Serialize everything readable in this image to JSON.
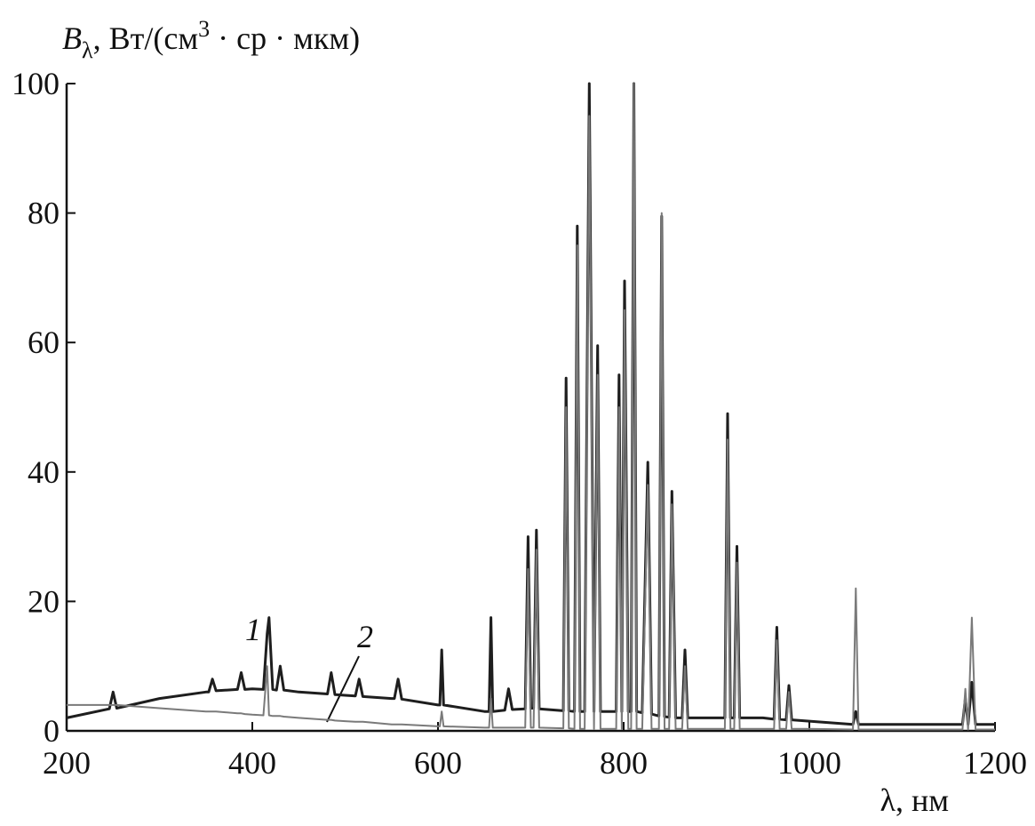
{
  "chart_data": {
    "type": "line",
    "y_label": {
      "symbol": "B",
      "subscript": "λ",
      "text": ", Вт/(см",
      "superscript": "3",
      "rest": " · ср · мкм)"
    },
    "x_label": "λ, нм",
    "annotations": [
      "1",
      "2"
    ],
    "x": [
      200,
      246,
      250,
      254,
      300,
      350,
      353,
      357,
      361,
      384,
      388,
      392,
      400,
      412,
      416,
      418,
      422,
      426,
      430,
      434,
      450,
      481,
      485,
      489,
      500,
      511,
      515,
      519,
      550,
      553,
      557,
      561,
      600,
      602,
      604,
      606,
      650,
      655,
      657,
      659,
      672,
      676,
      680,
      694,
      697,
      700,
      703,
      706,
      709,
      735,
      738,
      741,
      747,
      750,
      753,
      758,
      763,
      768,
      772,
      775,
      785,
      792,
      795,
      798,
      801,
      805,
      808,
      811,
      814,
      820,
      826,
      830,
      838,
      841,
      844,
      849,
      852,
      856,
      863,
      866,
      869,
      900,
      909,
      912,
      915,
      919,
      922,
      925,
      950,
      962,
      965,
      968,
      975,
      978,
      981,
      1000,
      1047,
      1050,
      1053,
      1100,
      1150,
      1165,
      1168,
      1171,
      1175,
      1179,
      1200
    ],
    "series": [
      {
        "name": "1",
        "color": "#1e1e1e",
        "values": [
          2,
          3.4,
          6,
          3.5,
          5,
          6,
          6,
          8,
          6.2,
          6.4,
          9,
          6.4,
          6.5,
          6.4,
          15,
          17.5,
          6.4,
          6.3,
          10,
          6.3,
          6,
          5.7,
          9,
          5.6,
          5.5,
          5.4,
          8,
          5.3,
          5,
          5,
          8,
          4.9,
          4,
          4,
          12.5,
          4,
          3,
          3,
          17.5,
          3,
          3.2,
          6.5,
          3.3,
          3.4,
          30,
          3.5,
          3.5,
          31,
          3.4,
          3.1,
          54.5,
          3.1,
          3,
          78,
          3,
          3,
          100,
          3,
          59.5,
          3,
          3,
          3,
          55,
          3,
          69.5,
          3,
          3,
          100,
          3,
          2.8,
          41.5,
          2.6,
          2.3,
          79.5,
          2.2,
          2.1,
          37,
          2,
          2,
          12.5,
          2,
          2,
          2,
          49,
          2,
          2,
          28.5,
          2,
          2,
          1.8,
          16,
          1.8,
          1.7,
          7,
          1.7,
          1.5,
          1,
          3,
          1,
          1,
          1,
          1,
          5,
          1,
          7.5,
          1,
          1
        ]
      },
      {
        "name": "2",
        "color": "#7a7a7a",
        "values": [
          4,
          4,
          4,
          4,
          3.5,
          3,
          3,
          3,
          3,
          2.7,
          2.7,
          2.6,
          2.5,
          2.4,
          10,
          2.4,
          2.3,
          2.3,
          2.3,
          2.2,
          2,
          1.7,
          1.7,
          1.6,
          1.5,
          1.4,
          1.4,
          1.4,
          1,
          1,
          1,
          1,
          0.7,
          0.7,
          3,
          0.7,
          0.5,
          0.5,
          5,
          0.5,
          0.5,
          0.5,
          0.5,
          0.5,
          25,
          0.5,
          0.5,
          28,
          0.5,
          0.4,
          50,
          0.4,
          0.3,
          75,
          0.3,
          0.3,
          95,
          0.3,
          55,
          0.3,
          0.3,
          0.3,
          50,
          0.3,
          65,
          0.3,
          0.3,
          100,
          0.3,
          0.3,
          38,
          0.3,
          0.3,
          80,
          0.3,
          0.3,
          35,
          0.3,
          0.3,
          10,
          0.3,
          0.3,
          0.3,
          45,
          0.3,
          0.3,
          26,
          0.3,
          0.3,
          0.3,
          14,
          0.3,
          0.3,
          6,
          0.3,
          0.3,
          0.2,
          22,
          0.2,
          0.2,
          0.2,
          0.2,
          6.5,
          0.2,
          17.5,
          0.2,
          0.2
        ]
      }
    ],
    "xlim": [
      200,
      1200
    ],
    "ylim": [
      0,
      100
    ],
    "xticks": [
      200,
      400,
      600,
      800,
      1000,
      1200
    ],
    "yticks": [
      0,
      20,
      40,
      60,
      80,
      100
    ],
    "grid": false
  }
}
